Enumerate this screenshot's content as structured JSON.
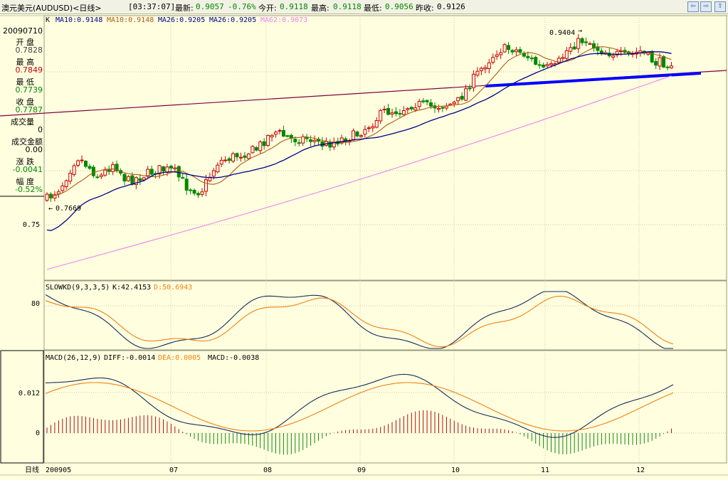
{
  "header": {
    "symbol": "澳元美元(AUDUSD)<日线>",
    "time": "[03:37:07]",
    "latest_label": "最新:",
    "latest_value": "0.9057",
    "change_pct": "-0.76%",
    "open_today_label": "今开:",
    "open_today_value": "0.9118",
    "high_label": "最高:",
    "high_value": "0.9118",
    "low_label": "最低:",
    "low_value": "0.9056",
    "prev_close_label": "昨收:",
    "prev_close_value": "0.9126"
  },
  "nav_buttons": [
    "⇦",
    "⇨",
    "⇧"
  ],
  "info_panel": {
    "date": "20090710",
    "open_label": "开 盘",
    "open_value": "0.7828",
    "high_label": "最 高",
    "high_value": "0.7849",
    "low_label": "最 低",
    "low_value": "0.7739",
    "close_label": "收 盘",
    "close_value": "0.7787",
    "volume_label": "成交量",
    "volume_value": "0",
    "amount_label": "成交金额",
    "amount_value": "0.00",
    "change_label": "涨 跌",
    "change_value": "-0.0041",
    "range_label": "幅 度",
    "range_value": "-0.52%"
  },
  "colors": {
    "up": "#cc0000",
    "down": "#008800",
    "ma10": "#b05a10",
    "ma26": "#00008b",
    "ma62": "#ee82ee",
    "kline": "#1a2a5a",
    "dline": "#f08010",
    "trendline": "#800040",
    "support": "#0000ff"
  },
  "chart_data": [
    {
      "type": "candlestick",
      "name": "main",
      "legend": {
        "k": "K",
        "ma10_a": "MA10:0.9148",
        "ma10_b": "MA10:0.9148",
        "ma26_a": "MA26:0.9205",
        "ma26_b": "MA26:0.9205",
        "ma62": "MA62:0.9073"
      },
      "y_tick_labels": [
        "0.75"
      ],
      "ylim": [
        0.7,
        0.956
      ],
      "annotations": {
        "max_label": "0.9404",
        "min_label": "0.7669"
      },
      "x_tick_labels": [
        "200905",
        "07",
        "08",
        "09",
        "10",
        "11",
        "12"
      ],
      "bar_count": 164,
      "series_summary": {
        "first_close": 0.7738,
        "high": 0.9404,
        "low": 0.7669,
        "last_close": 0.9057
      }
    },
    {
      "type": "line",
      "name": "slowkd",
      "legend": {
        "label": "SLOWKD(9,3,3,5)",
        "k": "K:42.4153",
        "d": "D:50.6943"
      },
      "y_tick_labels": [
        "80"
      ],
      "ylim": [
        0,
        100
      ],
      "series": [
        {
          "name": "K",
          "last": 42.4153
        },
        {
          "name": "D",
          "last": 50.6943
        }
      ]
    },
    {
      "type": "line",
      "name": "macd",
      "legend": {
        "label": "MACD(26,12,9)",
        "diff": "DIFF:-0.0014",
        "dea": "DEA:0.0005",
        "macd": "MACD:-0.0038"
      },
      "y_tick_labels": [
        "0.012",
        "0"
      ],
      "ylim": [
        -0.008,
        0.022
      ],
      "series": [
        {
          "name": "DIFF",
          "last": -0.0014
        },
        {
          "name": "DEA",
          "last": 0.0005
        },
        {
          "name": "MACD",
          "last": -0.0038
        }
      ]
    }
  ],
  "footer": {
    "x_axis_label": "日线"
  }
}
